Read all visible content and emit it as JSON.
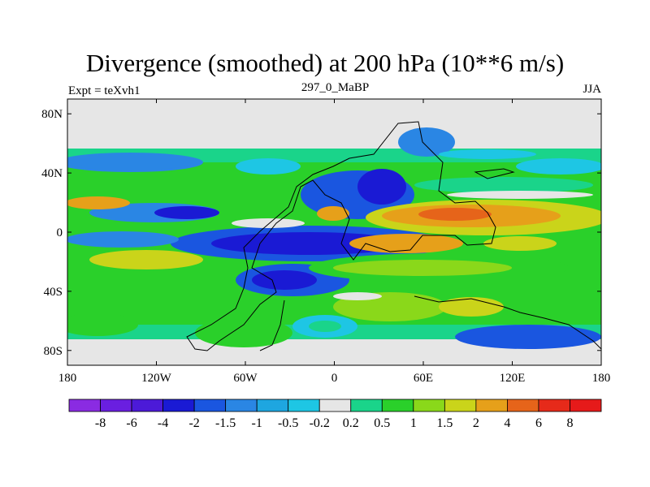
{
  "header": {
    "title": "Divergence (smoothed) at 200 hPa (10**6 m/s)",
    "left_label": "Expt = teXvh1",
    "center_label": "297_0_MaBP",
    "right_label": "JJA"
  },
  "chart_data": {
    "type": "heatmap",
    "title": "Divergence (smoothed) at 200 hPa (10**6 m/s)",
    "projection": "cylindrical equidistant",
    "xlim": [
      -180,
      180
    ],
    "ylim": [
      -90,
      90
    ],
    "x_ticks": [
      {
        "value": -180,
        "label": "180"
      },
      {
        "value": -120,
        "label": "120W"
      },
      {
        "value": -60,
        "label": "60W"
      },
      {
        "value": 0,
        "label": "0"
      },
      {
        "value": 60,
        "label": "60E"
      },
      {
        "value": 120,
        "label": "120E"
      },
      {
        "value": 180,
        "label": "180"
      }
    ],
    "y_ticks": [
      {
        "value": 80,
        "label": "80N"
      },
      {
        "value": 40,
        "label": "40N"
      },
      {
        "value": 0,
        "label": "0"
      },
      {
        "value": -40,
        "label": "40S"
      },
      {
        "value": -80,
        "label": "80S"
      }
    ],
    "colorbar": {
      "labels": [
        "-8",
        "-6",
        "-4",
        "-2",
        "-1.5",
        "-1",
        "-0.5",
        "-0.2",
        "0.2",
        "0.5",
        "1",
        "1.5",
        "2",
        "4",
        "6",
        "8"
      ],
      "colors": [
        "#8a2be2",
        "#6a1fe0",
        "#4c1ad8",
        "#1a1ad4",
        "#1a56e0",
        "#2a86e4",
        "#1ea6e0",
        "#1ec6e4",
        "#e6e6e6",
        "#1ad48a",
        "#2ad02a",
        "#8ad81a",
        "#cad41a",
        "#e6a01a",
        "#e6641a",
        "#e62a1a",
        "#e61a1a"
      ],
      "neutral_range": [
        -0.2,
        0.2
      ]
    },
    "field_summary": [
      {
        "region": "equatorial Pacific (180 to 60W, 10S-10N)",
        "range": "-4 to -1.5"
      },
      {
        "region": "Atlantic / West Africa (60W-20E, 0-20S)",
        "range": "-4 to -2"
      },
      {
        "region": "Indian Ocean / Asia (60E-120E, 0-25N)",
        "range": "2 to 6"
      },
      {
        "region": "Asia (70E-120E, 5-20S)",
        "range": "1.5 to 4"
      },
      {
        "region": "western Pacific subtropics (150W-130W, 15N)",
        "range": "2 to 4"
      },
      {
        "region": "mid-latitude storm tracks (40-60N / 40-60S)",
        "range": "-1 to 1"
      }
    ]
  }
}
